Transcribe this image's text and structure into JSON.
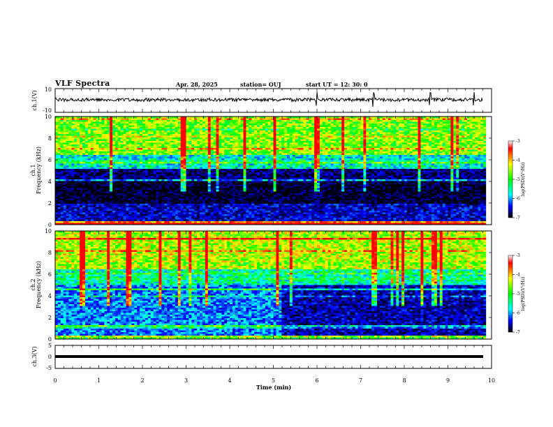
{
  "header": {
    "title": "VLF Spectra",
    "date": "Apr. 28, 2025",
    "station": "station= OUJ",
    "start": "start  UT  =   12: 30: 0"
  },
  "chart_data": [
    {
      "type": "line",
      "panel": "ch1-waveform",
      "ylabel": "ch.1(V)",
      "ylim": [
        -10,
        10
      ],
      "yticks": [
        "10",
        "-10"
      ],
      "xlim": [
        0,
        10
      ],
      "series": [
        {
          "values_approx": "noisy waveform centered near 0 V, amplitude about ±1 V, occasional spikes up to ±4 V near 6.0, 7.3, 8.6 and 9.6 min"
        }
      ]
    },
    {
      "type": "heatmap",
      "panel": "ch1-spectrogram",
      "ylabel": "ch.1\nFrequency (kHz)",
      "ylim": [
        0,
        10
      ],
      "yticks": [
        "0",
        "2",
        "4",
        "6",
        "8",
        "10"
      ],
      "xlim": [
        0,
        10
      ],
      "colorbar": {
        "label": "log(PSD)(V²/Hz)",
        "ticks": [
          "-3",
          "-4",
          "-5",
          "-6",
          "-7"
        ],
        "range": [
          -7,
          -3
        ]
      },
      "description_bands": [
        {
          "freq_khz": [
            0,
            0.4
          ],
          "level": -3.5
        },
        {
          "freq_khz": [
            0.4,
            2
          ],
          "level": -6.2
        },
        {
          "freq_khz": [
            2,
            4
          ],
          "level": -6.8
        },
        {
          "freq_khz": [
            4,
            5.2
          ],
          "level": -6.5
        },
        {
          "freq_khz": [
            5.2,
            6.5
          ],
          "level": -5.2
        },
        {
          "freq_khz": [
            6.5,
            10
          ],
          "level": -4.3
        }
      ]
    },
    {
      "type": "heatmap",
      "panel": "ch2-spectrogram",
      "ylabel": "ch.2\nFrequency (kHz)",
      "ylim": [
        0,
        10
      ],
      "yticks": [
        "0",
        "2",
        "4",
        "6",
        "8",
        "10"
      ],
      "xlim": [
        0,
        10
      ],
      "colorbar": {
        "label": "log(PSD)(V²/Hz)",
        "ticks": [
          "-3",
          "-4",
          "-5",
          "-6",
          "-7"
        ],
        "range": [
          -7,
          -3
        ]
      },
      "description_bands": [
        {
          "freq_khz": [
            0,
            0.4
          ],
          "level": -4.5
        },
        {
          "freq_khz": [
            0.4,
            5
          ],
          "level": -5.6,
          "after_min_5_2": -6.3
        },
        {
          "freq_khz": [
            5,
            6.5
          ],
          "level": -5.0
        },
        {
          "freq_khz": [
            6.5,
            10
          ],
          "level": -4.1
        }
      ]
    },
    {
      "type": "line",
      "panel": "ch3-waveform",
      "ylabel": "ch.3(V)",
      "ylim": [
        -5,
        5
      ],
      "yticks": [
        "5",
        "0",
        "-5"
      ],
      "xlim": [
        0,
        10
      ],
      "xlabel": "Time (min)",
      "xticks": [
        "0",
        "1",
        "2",
        "3",
        "4",
        "5",
        "6",
        "7",
        "8",
        "9",
        "10"
      ],
      "series": [
        {
          "values_approx": "near-constant about -0.5 V from 0 to 9.8 min (thick band)"
        }
      ]
    }
  ]
}
